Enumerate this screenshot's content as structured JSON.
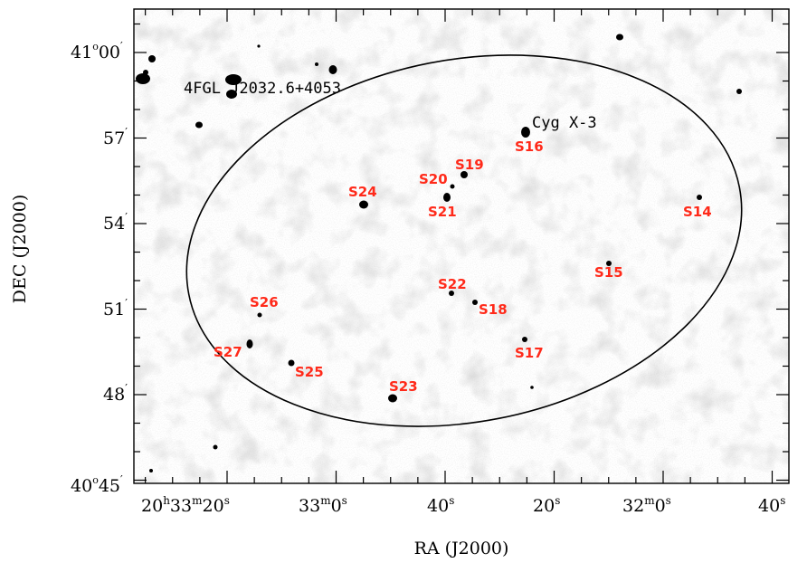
{
  "figure": {
    "xlabel": "RA (J2000)",
    "ylabel": "DEC (J2000)",
    "x_ticks": [
      {
        "h": "20",
        "m": "33",
        "s": "20"
      },
      {
        "m": "33",
        "s": "0"
      },
      {
        "s": "40"
      },
      {
        "s": "20"
      },
      {
        "m": "32",
        "s": "0"
      },
      {
        "s": "40"
      }
    ],
    "y_ticks": [
      {
        "deg": "41",
        "min": "00"
      },
      {
        "min": "57"
      },
      {
        "min": "54"
      },
      {
        "min": "51"
      },
      {
        "min": "48"
      },
      {
        "deg": "40",
        "min": "45"
      }
    ]
  },
  "object_labels": [
    {
      "id": "4fgl",
      "text": "4FGL J2032.6+4053"
    },
    {
      "id": "cygx3",
      "text": "Cyg X-3"
    }
  ],
  "sources": [
    {
      "name": "S14"
    },
    {
      "name": "S15"
    },
    {
      "name": "S16"
    },
    {
      "name": "S17"
    },
    {
      "name": "S18"
    },
    {
      "name": "S19"
    },
    {
      "name": "S20"
    },
    {
      "name": "S21"
    },
    {
      "name": "S22"
    },
    {
      "name": "S23"
    },
    {
      "name": "S24"
    },
    {
      "name": "S25"
    },
    {
      "name": "S26"
    },
    {
      "name": "S27"
    }
  ],
  "colors": {
    "source_label": "#ff2a1a",
    "background": "#ffffff",
    "noise": "#bdbdbd"
  }
}
